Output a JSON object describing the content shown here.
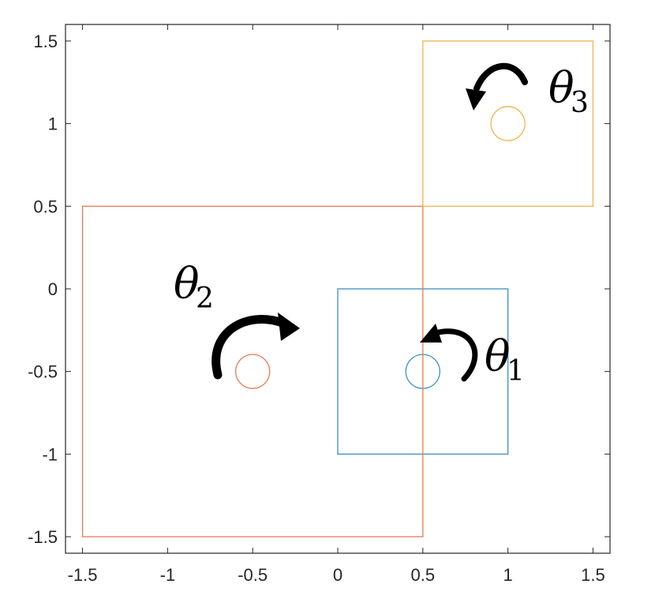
{
  "chart_data": {
    "type": "scatter",
    "title": "",
    "xlabel": "",
    "ylabel": "",
    "xlim": [
      -1.6,
      1.6
    ],
    "ylim": [
      -1.6,
      1.6
    ],
    "grid": false,
    "legend": "none",
    "xticks": [
      "-1.5",
      "-1",
      "-0.5",
      "0",
      "0.5",
      "1",
      "1.5"
    ],
    "yticks": [
      "1.5",
      "1",
      "0.5",
      "0",
      "-0.5",
      "-1",
      "-1.5"
    ],
    "xtick_values": [
      -1.5,
      -1,
      -0.5,
      0,
      0.5,
      1,
      1.5
    ],
    "ytick_values": [
      1.5,
      1,
      0.5,
      0,
      -0.5,
      -1,
      -1.5
    ],
    "series": [
      {
        "color": "#3D8FC9",
        "square": {
          "x": [
            0,
            1
          ],
          "y": [
            -1,
            0
          ]
        },
        "circle": {
          "center": [
            0.5,
            -0.5
          ],
          "radius": 0.1
        }
      },
      {
        "color": "#E87951",
        "square": {
          "x": [
            -1.5,
            0.5
          ],
          "y": [
            -1.5,
            0.5
          ]
        },
        "circle": {
          "center": [
            -0.5,
            -0.5
          ],
          "radius": 0.1
        }
      },
      {
        "color": "#EDB64A",
        "square": {
          "x": [
            0.5,
            1.5
          ],
          "y": [
            0.5,
            1.5
          ]
        },
        "circle": {
          "center": [
            1,
            1
          ],
          "radius": 0.1
        }
      }
    ],
    "annotations": [
      {
        "symbol": "θ",
        "subscript": "1",
        "label_at": [
          0.95,
          -0.42
        ],
        "arrow": "counterclockwise"
      },
      {
        "symbol": "θ",
        "subscript": "2",
        "label_at": [
          -1.0,
          0.0
        ],
        "arrow": "clockwise"
      },
      {
        "symbol": "θ",
        "subscript": "3",
        "label_at": [
          1.23,
          1.15
        ],
        "arrow": "counterclockwise"
      }
    ]
  }
}
